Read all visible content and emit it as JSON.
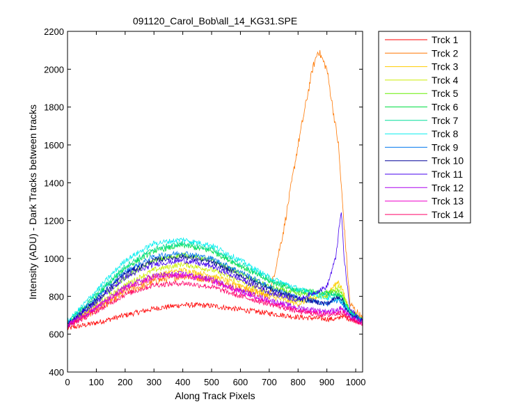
{
  "chart_data": {
    "type": "line",
    "title": "091120_Carol_Bob\\all_14_KG31.SPE",
    "xlabel": "Along Track Pixels",
    "ylabel": "Intensity (ADU) - Dark Tracks between tracks",
    "xlim": [
      0,
      1024
    ],
    "ylim": [
      400,
      2200
    ],
    "xticks": [
      0,
      100,
      200,
      300,
      400,
      500,
      600,
      700,
      800,
      900,
      1000
    ],
    "yticks": [
      400,
      600,
      800,
      1000,
      1200,
      1400,
      1600,
      1800,
      2000,
      2200
    ],
    "grid": false,
    "legend_position": "outside-top-right",
    "noise_note_hidden": false,
    "series": [
      {
        "name": "Trck 1",
        "color": "#ff0000",
        "x": [
          0,
          100,
          200,
          300,
          400,
          500,
          600,
          700,
          800,
          900,
          940,
          950,
          960,
          1024
        ],
        "y": [
          630,
          660,
          700,
          735,
          755,
          750,
          730,
          710,
          690,
          680,
          680,
          700,
          690,
          660
        ]
      },
      {
        "name": "Trck 2",
        "color": "#ff7700",
        "x": [
          0,
          100,
          200,
          300,
          400,
          500,
          600,
          700,
          750,
          800,
          850,
          870,
          900,
          940,
          950,
          980,
          1024
        ],
        "y": [
          650,
          730,
          820,
          880,
          910,
          890,
          840,
          800,
          1150,
          1600,
          2000,
          2100,
          2000,
          1600,
          1380,
          760,
          680
        ]
      },
      {
        "name": "Trck 3",
        "color": "#ffcc00",
        "x": [
          0,
          100,
          200,
          300,
          400,
          500,
          600,
          700,
          800,
          900,
          940,
          950,
          980,
          1024
        ],
        "y": [
          650,
          740,
          840,
          910,
          940,
          910,
          860,
          800,
          760,
          810,
          880,
          850,
          720,
          670
        ]
      },
      {
        "name": "Trck 4",
        "color": "#ccee00",
        "x": [
          0,
          100,
          200,
          300,
          400,
          500,
          600,
          700,
          800,
          900,
          940,
          950,
          980,
          1024
        ],
        "y": [
          650,
          750,
          860,
          940,
          970,
          940,
          880,
          820,
          780,
          800,
          860,
          830,
          720,
          670
        ]
      },
      {
        "name": "Trck 5",
        "color": "#66ee00",
        "x": [
          0,
          100,
          200,
          300,
          400,
          500,
          600,
          700,
          800,
          900,
          940,
          950,
          980,
          1024
        ],
        "y": [
          655,
          770,
          900,
          990,
          1020,
          990,
          920,
          850,
          810,
          820,
          830,
          820,
          720,
          670
        ]
      },
      {
        "name": "Trck 6",
        "color": "#00dd44",
        "x": [
          0,
          100,
          200,
          300,
          400,
          500,
          600,
          700,
          800,
          900,
          940,
          950,
          980,
          1024
        ],
        "y": [
          660,
          800,
          950,
          1040,
          1070,
          1040,
          960,
          880,
          830,
          820,
          810,
          800,
          720,
          670
        ]
      },
      {
        "name": "Trck 7",
        "color": "#00dd99",
        "x": [
          0,
          100,
          200,
          300,
          400,
          500,
          600,
          700,
          800,
          900,
          940,
          950,
          980,
          1024
        ],
        "y": [
          660,
          810,
          960,
          1050,
          1080,
          1050,
          970,
          890,
          830,
          810,
          800,
          790,
          720,
          670
        ]
      },
      {
        "name": "Trck 8",
        "color": "#00eeee",
        "x": [
          0,
          100,
          200,
          300,
          400,
          500,
          600,
          700,
          800,
          900,
          940,
          950,
          980,
          1024
        ],
        "y": [
          665,
          830,
          990,
          1080,
          1100,
          1070,
          990,
          900,
          840,
          790,
          780,
          770,
          720,
          670
        ]
      },
      {
        "name": "Trck 9",
        "color": "#0077ee",
        "x": [
          0,
          100,
          200,
          300,
          400,
          500,
          600,
          700,
          800,
          900,
          940,
          950,
          980,
          1024
        ],
        "y": [
          655,
          790,
          930,
          1010,
          1030,
          1000,
          930,
          850,
          790,
          760,
          780,
          770,
          700,
          670
        ]
      },
      {
        "name": "Trck 10",
        "color": "#000099",
        "x": [
          0,
          100,
          200,
          300,
          400,
          500,
          600,
          700,
          800,
          900,
          940,
          950,
          980,
          1024
        ],
        "y": [
          650,
          780,
          920,
          990,
          1010,
          980,
          910,
          840,
          790,
          760,
          800,
          790,
          700,
          670
        ]
      },
      {
        "name": "Trck 11",
        "color": "#4400ee",
        "x": [
          0,
          100,
          200,
          300,
          400,
          500,
          600,
          700,
          800,
          900,
          930,
          950,
          960,
          980,
          1024
        ],
        "y": [
          650,
          770,
          900,
          970,
          990,
          960,
          890,
          820,
          780,
          850,
          1000,
          1250,
          1000,
          730,
          670
        ]
      },
      {
        "name": "Trck 12",
        "color": "#aa00ee",
        "x": [
          0,
          100,
          200,
          300,
          400,
          500,
          600,
          700,
          800,
          900,
          940,
          950,
          980,
          1024
        ],
        "y": [
          645,
          740,
          850,
          910,
          920,
          890,
          830,
          780,
          740,
          720,
          730,
          740,
          690,
          660
        ]
      },
      {
        "name": "Trck 13",
        "color": "#ee00cc",
        "x": [
          0,
          100,
          200,
          300,
          400,
          500,
          600,
          700,
          800,
          900,
          940,
          950,
          980,
          1024
        ],
        "y": [
          645,
          740,
          840,
          900,
          910,
          880,
          820,
          770,
          730,
          710,
          720,
          730,
          690,
          660
        ]
      },
      {
        "name": "Trck 14",
        "color": "#ff0066",
        "x": [
          0,
          100,
          200,
          300,
          400,
          500,
          600,
          700,
          800,
          900,
          940,
          950,
          980,
          1024
        ],
        "y": [
          640,
          720,
          810,
          860,
          870,
          850,
          800,
          760,
          720,
          700,
          710,
          720,
          680,
          655
        ]
      }
    ]
  }
}
